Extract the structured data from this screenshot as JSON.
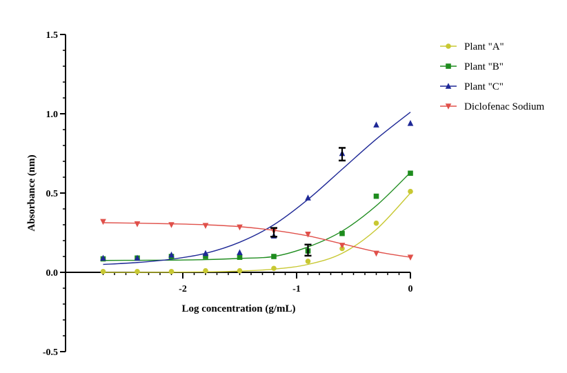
{
  "chart_data": {
    "type": "scatter",
    "xlabel": "Log concentration (g/mL)",
    "ylabel": "Absorbance (nm)",
    "xlim": [
      -2.75,
      0
    ],
    "ylim": [
      -0.5,
      1.5
    ],
    "x_ticks": [
      -2,
      -1,
      0
    ],
    "x_tick_labels": [
      "-2",
      "-1",
      "0"
    ],
    "y_ticks": [
      -0.5,
      0,
      0.5,
      1,
      1.5
    ],
    "y_tick_labels": [
      "-0.5",
      "0.0",
      "0.5",
      "1.0",
      "1.5"
    ],
    "grid": false,
    "legend_position": "top-right",
    "series": [
      {
        "name": "Plant \"A\"",
        "marker": "circle",
        "color": "#c8c832",
        "x": [
          -2.7,
          -2.4,
          -2.1,
          -1.8,
          -1.5,
          -1.2,
          -0.9,
          -0.6,
          -0.3,
          0
        ],
        "y": [
          0.005,
          0.005,
          0.005,
          0.01,
          0.01,
          0.025,
          0.07,
          0.15,
          0.31,
          0.51
        ],
        "fit_y": [
          0.0,
          0.0,
          0.001,
          0.003,
          0.008,
          0.02,
          0.05,
          0.12,
          0.27,
          0.5
        ]
      },
      {
        "name": "Plant \"B\"",
        "marker": "square",
        "color": "#1e8c1e",
        "x": [
          -2.7,
          -2.4,
          -2.1,
          -1.8,
          -1.5,
          -1.2,
          -0.9,
          -0.6,
          -0.3,
          0
        ],
        "y": [
          0.085,
          0.09,
          0.1,
          0.1,
          0.095,
          0.1,
          0.135,
          0.245,
          0.48,
          0.625
        ],
        "fit_y": [
          0.075,
          0.076,
          0.077,
          0.08,
          0.088,
          0.1,
          0.16,
          0.26,
          0.42,
          0.63
        ]
      },
      {
        "name": "Plant \"C\"",
        "marker": "triangle",
        "color": "#1e2896",
        "x": [
          -2.7,
          -2.4,
          -2.1,
          -1.8,
          -1.5,
          -1.2,
          -0.9,
          -0.6,
          -0.3,
          0
        ],
        "y": [
          0.09,
          0.09,
          0.11,
          0.12,
          0.125,
          0.23,
          0.47,
          0.75,
          0.93,
          0.94
        ],
        "fit_y": [
          0.05,
          0.062,
          0.083,
          0.12,
          0.19,
          0.3,
          0.46,
          0.65,
          0.84,
          1.01
        ]
      },
      {
        "name": "Diclofenac Sodium",
        "marker": "triangle-down",
        "color": "#e0504a",
        "x": [
          -2.7,
          -2.4,
          -2.1,
          -1.8,
          -1.5,
          -1.2,
          -0.9,
          -0.6,
          -0.3,
          0
        ],
        "y": [
          0.32,
          0.305,
          0.3,
          0.295,
          0.285,
          0.26,
          0.24,
          0.17,
          0.12,
          0.095
        ],
        "fit_y": [
          0.313,
          0.31,
          0.306,
          0.3,
          0.288,
          0.265,
          0.23,
          0.18,
          0.13,
          0.095
        ]
      }
    ],
    "error_bars": [
      {
        "x": -1.2,
        "low": 0.225,
        "high": 0.28,
        "color": "#000000"
      },
      {
        "x": -0.9,
        "low": 0.105,
        "high": 0.175,
        "color": "#000000"
      },
      {
        "x": -0.6,
        "low": 0.705,
        "high": 0.785,
        "color": "#000000"
      }
    ]
  }
}
